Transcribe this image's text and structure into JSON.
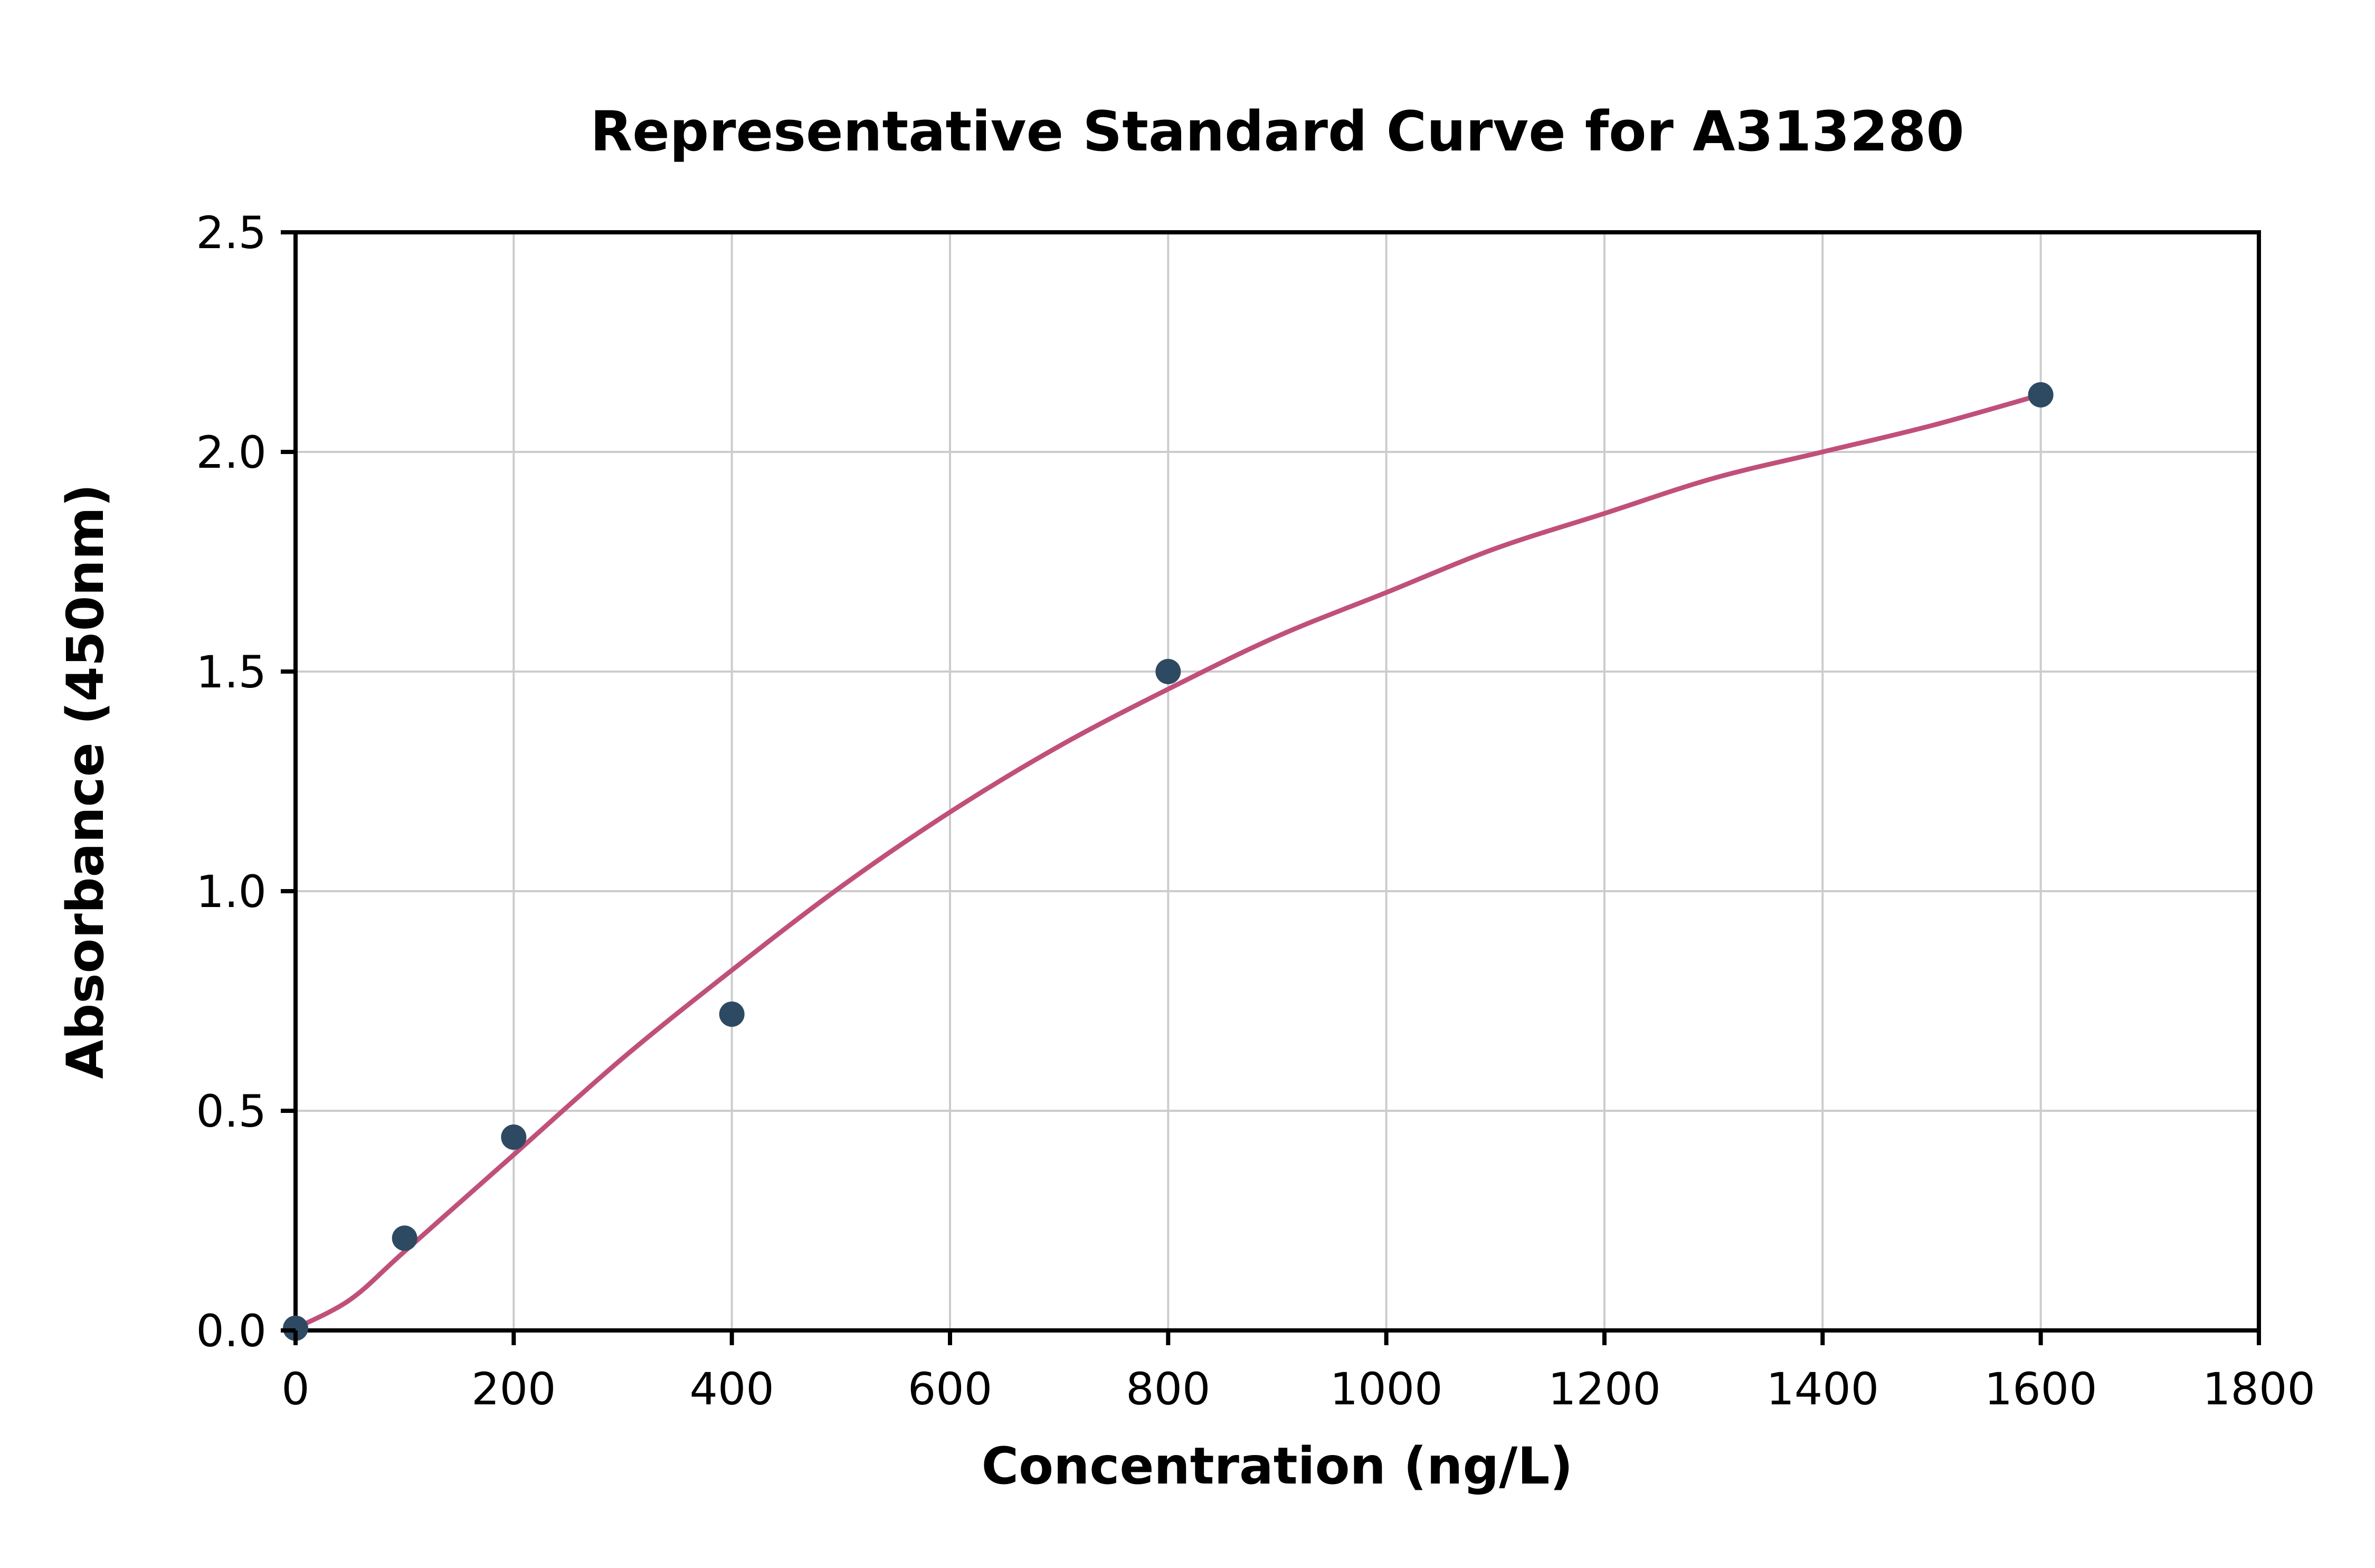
{
  "chart_data": {
    "type": "scatter",
    "title": "Representative Standard Curve for A313280",
    "xlabel": "Concentration (ng/L)",
    "ylabel": "Absorbance (450nm)",
    "xlim": [
      0,
      1800
    ],
    "ylim": [
      0,
      2.5
    ],
    "grid": true,
    "legend": "none",
    "x_ticks": [
      0,
      200,
      400,
      600,
      800,
      1000,
      1200,
      1400,
      1600,
      1800
    ],
    "x_tick_labels": [
      "0",
      "200",
      "400",
      "600",
      "800",
      "1000",
      "1200",
      "1400",
      "1600",
      "1800"
    ],
    "y_ticks": [
      0.0,
      0.5,
      1.0,
      1.5,
      2.0,
      2.5
    ],
    "y_tick_labels": [
      "0.0",
      "0.5",
      "1.0",
      "1.5",
      "2.0",
      "2.5"
    ],
    "colors": {
      "points": "#2e4a62",
      "curve": "#c0507a",
      "grid": "#cccccc",
      "axes": "#000000",
      "background": "#ffffff"
    },
    "series": [
      {
        "name": "standard-points",
        "type": "scatter",
        "x": [
          0,
          100,
          200,
          400,
          800,
          1600
        ],
        "y": [
          0.005,
          0.21,
          0.44,
          0.72,
          1.5,
          2.13
        ]
      },
      {
        "name": "fit-curve",
        "type": "line",
        "x": [
          0,
          50,
          100,
          200,
          300,
          400,
          500,
          600,
          700,
          800,
          900,
          1000,
          1100,
          1200,
          1300,
          1400,
          1500,
          1600
        ],
        "y": [
          0.005,
          0.07,
          0.18,
          0.4,
          0.62,
          0.82,
          1.01,
          1.18,
          1.33,
          1.46,
          1.58,
          1.68,
          1.78,
          1.86,
          1.94,
          2.0,
          2.06,
          2.13
        ]
      }
    ]
  }
}
